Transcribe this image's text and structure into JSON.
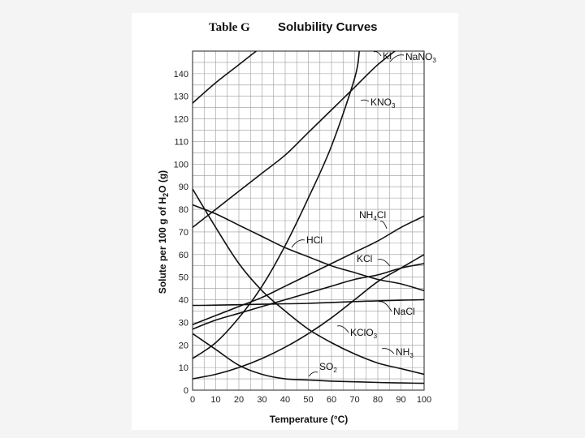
{
  "chart_data": {
    "type": "line",
    "title_prefix": "Table G",
    "title": "Solubility Curves",
    "xlabel": "Temperature (°C)",
    "ylabel": "Solute per 100 g of H2O (g)",
    "xlim": [
      0,
      100
    ],
    "ylim": [
      0,
      150
    ],
    "x_ticks": [
      0,
      10,
      20,
      30,
      40,
      50,
      60,
      70,
      80,
      90,
      100
    ],
    "y_ticks": [
      0,
      10,
      20,
      30,
      40,
      50,
      60,
      70,
      80,
      90,
      100,
      110,
      120,
      130,
      140
    ],
    "grid": true,
    "series": [
      {
        "name": "KI",
        "sub": "",
        "x": [
          0,
          10,
          20,
          30
        ],
        "y": [
          127,
          136,
          144,
          152
        ]
      },
      {
        "name": "NaNO",
        "sub": "3",
        "x": [
          0,
          10,
          20,
          30,
          40,
          50,
          60,
          70,
          80,
          90
        ],
        "y": [
          72,
          80,
          88,
          96,
          104,
          114,
          124,
          134,
          144,
          152
        ]
      },
      {
        "name": "KNO",
        "sub": "3",
        "x": [
          0,
          10,
          20,
          30,
          40,
          50,
          60,
          70,
          72
        ],
        "y": [
          14,
          21,
          32,
          46,
          64,
          85,
          108,
          138,
          150
        ]
      },
      {
        "name": "NH",
        "sub": "4",
        "tail": "Cl",
        "x": [
          0,
          10,
          20,
          30,
          40,
          50,
          60,
          70,
          80,
          90,
          100
        ],
        "y": [
          29,
          33,
          37,
          41,
          46,
          51,
          56,
          61,
          66,
          72,
          77
        ]
      },
      {
        "name": "HCl",
        "sub": "",
        "x": [
          0,
          10,
          20,
          30,
          40,
          50,
          60,
          70,
          80,
          90,
          100
        ],
        "y": [
          82,
          78,
          73,
          68,
          63,
          59,
          55,
          52,
          49,
          47,
          44
        ]
      },
      {
        "name": "KCl",
        "sub": "",
        "x": [
          0,
          10,
          20,
          30,
          40,
          50,
          60,
          70,
          80,
          90,
          100
        ],
        "y": [
          27,
          31,
          34,
          37,
          40,
          43,
          46,
          49,
          51,
          54,
          56
        ]
      },
      {
        "name": "NaCl",
        "sub": "",
        "x": [
          0,
          10,
          20,
          30,
          40,
          50,
          60,
          70,
          80,
          90,
          100
        ],
        "y": [
          37.5,
          37.6,
          37.8,
          38,
          38.2,
          38.4,
          38.8,
          39.2,
          39.5,
          39.8,
          40
        ]
      },
      {
        "name": "KClO",
        "sub": "3",
        "x": [
          0,
          10,
          20,
          30,
          40,
          50,
          60,
          70,
          80,
          90,
          100
        ],
        "y": [
          5,
          7,
          10,
          14,
          19,
          25,
          32,
          40,
          48,
          54,
          60
        ]
      },
      {
        "name": "NH",
        "sub": "3",
        "x": [
          0,
          10,
          20,
          30,
          40,
          50,
          60,
          70,
          80,
          90,
          100
        ],
        "y": [
          89,
          72,
          56,
          44,
          35,
          27,
          21,
          16,
          12,
          9.5,
          7
        ]
      },
      {
        "name": "SO",
        "sub": "2",
        "x": [
          0,
          10,
          20,
          30,
          40,
          50,
          60,
          70,
          80,
          90,
          100
        ],
        "y": [
          25,
          18,
          11,
          7,
          5,
          4.5,
          4,
          3.7,
          3.4,
          3.2,
          3
        ]
      }
    ]
  }
}
